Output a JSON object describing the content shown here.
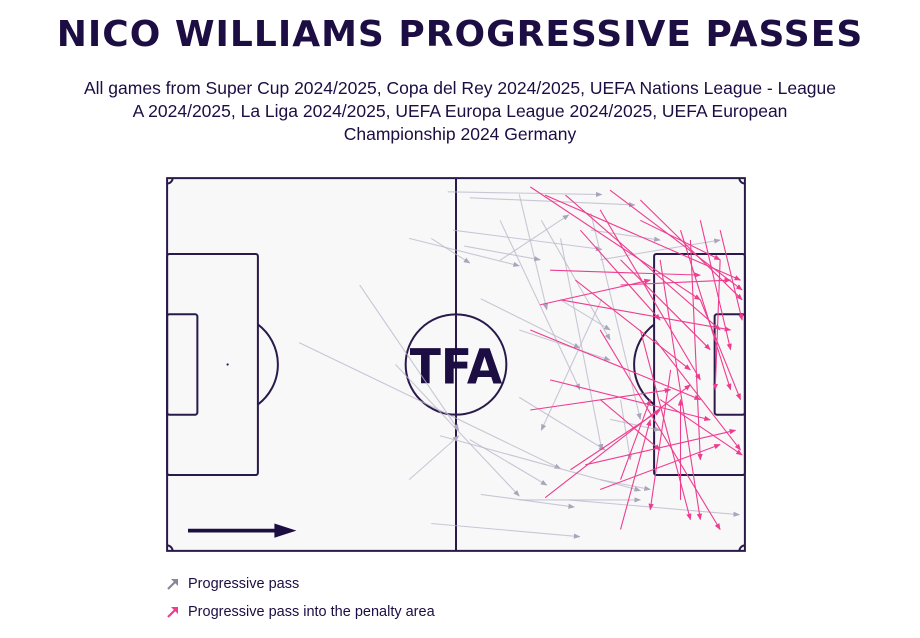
{
  "title": "NICO WILLIAMS PROGRESSIVE PASSES",
  "subtitle_lines": [
    "All games from Super Cup 2024/2025, Copa del Rey 2024/2025, UEFA Nations League - League",
    "A 2024/2025, La Liga 2024/2025, UEFA Europa League 2024/2025, UEFA European",
    "Championship 2024 Germany"
  ],
  "logo_text": "TFA",
  "legend": [
    {
      "label": "Progressive pass",
      "color": "#8a8599"
    },
    {
      "label": "Progressive pass into the penalty area",
      "color": "#ee3d8f"
    }
  ],
  "colors": {
    "pitch_lines": "#2a1a4a",
    "pitch_bg": "#f8f8f9",
    "progressive": "#b9b6c8",
    "penalty_area": "#ee3d8f"
  },
  "chart_data": {
    "type": "pass-map",
    "title": "NICO WILLIAMS PROGRESSIVE PASSES",
    "pitch_units": "metres",
    "xlim": [
      0,
      105
    ],
    "ylim": [
      0,
      68
    ],
    "attack_direction": "left-to-right",
    "series": [
      {
        "name": "Progressive pass",
        "passes": [
          [
            51,
            2.5,
            79,
            3
          ],
          [
            55,
            3.6,
            85,
            4.9
          ],
          [
            44,
            11,
            64,
            16
          ],
          [
            48,
            11,
            55,
            15.5
          ],
          [
            64,
            3,
            69,
            24
          ],
          [
            35,
            19.5,
            53,
            46
          ],
          [
            24,
            30,
            71.5,
            53
          ],
          [
            41.5,
            34,
            64,
            58
          ],
          [
            52,
            9.5,
            79,
            13
          ],
          [
            68,
            7.7,
            80.5,
            29.5
          ],
          [
            77,
            6.4,
            86,
            44
          ],
          [
            60.5,
            15,
            73,
            6.7
          ],
          [
            57,
            22,
            75,
            31
          ],
          [
            71.5,
            11,
            79,
            49.6
          ],
          [
            44,
            55,
            53,
            47
          ],
          [
            55,
            47.7,
            69,
            56
          ],
          [
            64,
            40,
            79.6,
            49.6
          ],
          [
            49.6,
            47,
            86,
            57
          ],
          [
            79,
            22,
            68,
            46
          ],
          [
            60.5,
            7.7,
            75,
            38.6
          ],
          [
            80.5,
            44,
            89.6,
            46
          ],
          [
            73,
            58.7,
            104,
            61.4
          ],
          [
            48,
            63,
            75,
            65.4
          ],
          [
            64,
            58.7,
            86,
            58.7
          ],
          [
            57,
            57.7,
            74,
            60
          ],
          [
            82.4,
            40.4,
            84.2,
            51.4
          ],
          [
            77,
            9.5,
            89.6,
            11.3
          ],
          [
            54,
            12.4,
            67.8,
            14.9
          ],
          [
            64,
            27.7,
            80.5,
            33.2
          ],
          [
            78.7,
            55,
            87.8,
            56.8
          ],
          [
            71.5,
            22.2,
            80.5,
            27.7
          ],
          [
            78.7,
            14.9,
            100.5,
            11.3
          ]
        ]
      },
      {
        "name": "Progressive pass into the penalty area",
        "passes": [
          [
            66,
            1.6,
            96.9,
            22.2
          ],
          [
            68.7,
            3.1,
            104.2,
            18.6
          ],
          [
            72.4,
            3.1,
            100.5,
            27.7
          ],
          [
            75.1,
            9.5,
            89.6,
            25.9
          ],
          [
            78.7,
            5.8,
            96.9,
            36.8
          ],
          [
            80.5,
            2.2,
            104.5,
            20.4
          ],
          [
            69.6,
            16.8,
            96.9,
            17.7
          ],
          [
            74.2,
            18.6,
            95.1,
            35
          ],
          [
            67.8,
            23.1,
            87.8,
            18.6
          ],
          [
            71.5,
            22.2,
            102.4,
            27.7
          ],
          [
            66,
            27.7,
            96.9,
            40.4
          ],
          [
            82.4,
            14.9,
            98.7,
            31.3
          ],
          [
            86,
            7.7,
            100.5,
            14.9
          ],
          [
            69.6,
            36.8,
            98.7,
            44.1
          ],
          [
            78.7,
            27.7,
            100.5,
            64.1
          ],
          [
            66,
            42.3,
            91.5,
            38.6
          ],
          [
            68.7,
            58.3,
            95.1,
            37.7
          ],
          [
            73.3,
            53.2,
            89.6,
            42.3
          ],
          [
            82.4,
            55,
            87.8,
            40.4
          ],
          [
            82.4,
            64.1,
            87.8,
            44.1
          ],
          [
            78.7,
            56.8,
            100.5,
            48.6
          ],
          [
            76,
            52.3,
            103.3,
            46
          ],
          [
            89.6,
            40.4,
            104.5,
            50.5
          ],
          [
            93.3,
            58.7,
            93.3,
            40.4
          ],
          [
            86,
            27.7,
            95.1,
            62.3
          ],
          [
            89.6,
            14.9,
            96.9,
            62.3
          ],
          [
            93.3,
            9.5,
            102.4,
            38.6
          ],
          [
            96.9,
            7.7,
            102.4,
            31.3
          ],
          [
            86,
            4,
            104.5,
            22.2
          ],
          [
            96.9,
            22.2,
            104.2,
            40.4
          ],
          [
            88.7,
            29.5,
            104.2,
            49.6
          ],
          [
            82.4,
            19.5,
            102.4,
            18.6
          ],
          [
            95.1,
            11.3,
            96.9,
            51.4
          ],
          [
            91.5,
            35,
            87.8,
            60.5
          ],
          [
            100.5,
            14.9,
            99.6,
            38.6
          ],
          [
            78.7,
            40.4,
            89.6,
            49.6
          ],
          [
            100.5,
            9.5,
            104.5,
            25.9
          ]
        ]
      }
    ]
  }
}
